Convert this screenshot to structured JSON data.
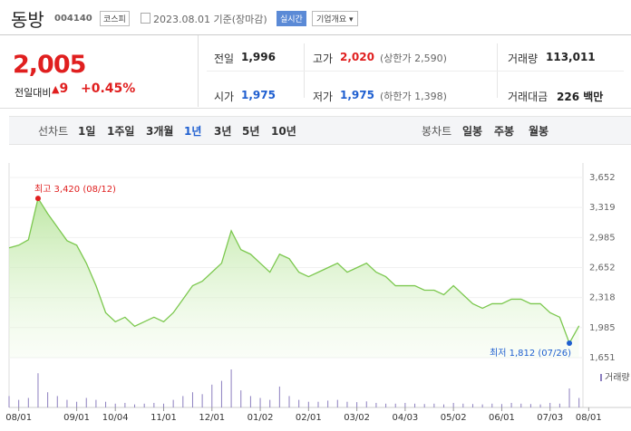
{
  "header": {
    "name": "동방",
    "code": "004140",
    "market": "코스피",
    "date": "2023.08.01 기준(장마감)",
    "realtime": "실시간",
    "overview": "기업개요"
  },
  "quote": {
    "price": "2,005",
    "change_label": "전일대비",
    "change": "9",
    "rate": "+0.45%",
    "items": [
      {
        "label": "전일",
        "value": "1,996",
        "color": "#222222"
      },
      {
        "label": "고가",
        "value": "2,020",
        "note": "(상한가 2,590)",
        "color": "#e01f1f"
      },
      {
        "label": "거래량",
        "value": "113,011",
        "color": "#222222"
      },
      {
        "label": "시가",
        "value": "1,975",
        "color": "#1f5fd0"
      },
      {
        "label": "저가",
        "value": "1,975",
        "note": "(하한가 1,398)",
        "color": "#1f5fd0"
      },
      {
        "label": "거래대금",
        "value": "226 백만",
        "color": "#222222"
      }
    ]
  },
  "tabs": {
    "line_label": "선차트",
    "line": [
      "1일",
      "1주일",
      "3개월",
      "1년",
      "3년",
      "5년",
      "10년"
    ],
    "selected": 3,
    "candle_label": "봉차트",
    "candle": [
      "일봉",
      "주봉",
      "월봉"
    ]
  },
  "chart_data": {
    "type": "line",
    "color": "#7cc84f",
    "values": [
      2870,
      2900,
      2960,
      3420,
      3250,
      3100,
      2950,
      2900,
      2700,
      2450,
      2150,
      2050,
      2100,
      2000,
      2050,
      2100,
      2050,
      2150,
      2300,
      2450,
      2500,
      2600,
      2700,
      3060,
      2850,
      2800,
      2700,
      2600,
      2800,
      2750,
      2600,
      2550,
      2600,
      2650,
      2700,
      2600,
      2650,
      2700,
      2600,
      2550,
      2450,
      2450,
      2450,
      2400,
      2400,
      2350,
      2450,
      2350,
      2250,
      2200,
      2250,
      2250,
      2300,
      2300,
      2250,
      2250,
      2150,
      2100,
      1812,
      2005
    ],
    "volume": [
      30,
      20,
      25,
      90,
      40,
      30,
      20,
      15,
      25,
      20,
      15,
      10,
      12,
      8,
      10,
      12,
      10,
      20,
      30,
      40,
      35,
      60,
      70,
      100,
      45,
      30,
      25,
      20,
      55,
      30,
      20,
      15,
      15,
      18,
      20,
      15,
      14,
      16,
      12,
      10,
      10,
      12,
      10,
      9,
      10,
      8,
      12,
      10,
      9,
      8,
      10,
      9,
      12,
      10,
      9,
      8,
      12,
      10,
      50,
      25
    ],
    "xlim": [
      0,
      61
    ],
    "ylim": [
      1651,
      3652
    ],
    "yticks": [
      {
        "value": 1651,
        "label": "1,651"
      },
      {
        "value": 1985,
        "label": "1,985"
      },
      {
        "value": 2318,
        "label": "2,318"
      },
      {
        "value": 2652,
        "label": "2,652"
      },
      {
        "value": 2985,
        "label": "2,985"
      },
      {
        "value": 3319,
        "label": "3,319"
      },
      {
        "value": 3652,
        "label": "3,652"
      }
    ],
    "xticks": [
      {
        "value": 1,
        "label": "08/01"
      },
      {
        "value": 7,
        "label": "09/01"
      },
      {
        "value": 11,
        "label": "10/04"
      },
      {
        "value": 16,
        "label": "11/01"
      },
      {
        "value": 21,
        "label": "12/01"
      },
      {
        "value": 26,
        "label": "01/02"
      },
      {
        "value": 31,
        "label": "02/01"
      },
      {
        "value": 36,
        "label": "03/02"
      },
      {
        "value": 41,
        "label": "04/03"
      },
      {
        "value": 46,
        "label": "05/02"
      },
      {
        "value": 51,
        "label": "06/01"
      },
      {
        "value": 56,
        "label": "07/03"
      },
      {
        "value": 60,
        "label": "08/01"
      }
    ],
    "volume_label": "거래량",
    "annotations": [
      {
        "text": "최고 3,420 (08/12)",
        "index": 3,
        "color": "#e01f1f"
      },
      {
        "text": "최저 1,812 (07/26)",
        "index": 58,
        "color": "#1f5fd0"
      }
    ]
  }
}
